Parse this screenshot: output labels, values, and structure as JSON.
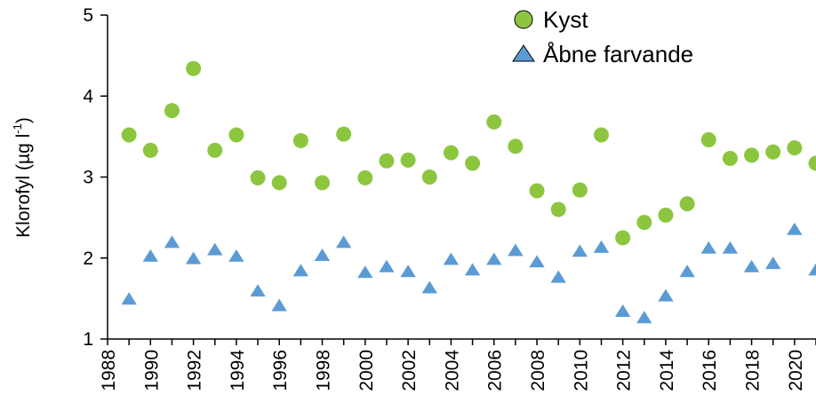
{
  "chart_data": {
    "type": "scatter",
    "title": "",
    "xlabel": "",
    "ylabel": "Klorofyl (µg l",
    "ylabel_superscript": "-1",
    "ylabel_close": ")",
    "xlim": [
      1988,
      2021
    ],
    "ylim": [
      1,
      5
    ],
    "x_ticks": [
      1988,
      1990,
      1992,
      1994,
      1996,
      1998,
      2000,
      2002,
      2004,
      2006,
      2008,
      2010,
      2012,
      2014,
      2016,
      2018,
      2020
    ],
    "x_tick_labels": [
      "1988",
      "1990",
      "1992",
      "1994",
      "1996",
      "1998",
      "2000",
      "2002",
      "2004",
      "2006",
      "2008",
      "2010",
      "2012",
      "2014",
      "2016",
      "2018",
      "2020"
    ],
    "y_ticks": [
      1,
      2,
      3,
      4,
      5
    ],
    "y_tick_labels": [
      "1",
      "2",
      "3",
      "4",
      "5"
    ],
    "grid": false,
    "legend": "top-right",
    "series": [
      {
        "name": "Kyst",
        "marker": "circle",
        "color": "#8cc63f",
        "x": [
          1989,
          1990,
          1991,
          1992,
          1993,
          1994,
          1995,
          1996,
          1997,
          1998,
          1999,
          2000,
          2001,
          2002,
          2003,
          2004,
          2005,
          2006,
          2007,
          2008,
          2009,
          2010,
          2011,
          2012,
          2013,
          2014,
          2015,
          2016,
          2017,
          2018,
          2019,
          2020,
          2021
        ],
        "values": [
          3.52,
          3.33,
          3.82,
          4.34,
          3.33,
          3.52,
          2.99,
          2.93,
          3.45,
          2.93,
          3.53,
          2.99,
          3.2,
          3.21,
          3.0,
          3.3,
          3.17,
          3.68,
          3.38,
          2.83,
          2.6,
          2.84,
          3.52,
          2.25,
          2.44,
          2.53,
          2.67,
          3.46,
          3.23,
          3.27,
          3.31,
          3.36,
          3.17
        ]
      },
      {
        "name": "Åbne farvande",
        "marker": "triangle",
        "color": "#5b9bd5",
        "x": [
          1989,
          1990,
          1991,
          1992,
          1993,
          1994,
          1995,
          1996,
          1997,
          1998,
          1999,
          2000,
          2001,
          2002,
          2003,
          2004,
          2005,
          2006,
          2007,
          2008,
          2009,
          2010,
          2011,
          2012,
          2013,
          2014,
          2015,
          2016,
          2017,
          2018,
          2019,
          2020,
          2021
        ],
        "values": [
          1.49,
          2.02,
          2.19,
          1.99,
          2.1,
          2.02,
          1.59,
          1.41,
          1.84,
          2.03,
          2.19,
          1.82,
          1.89,
          1.83,
          1.63,
          1.98,
          1.85,
          1.98,
          2.09,
          1.95,
          1.76,
          2.08,
          2.13,
          1.34,
          1.26,
          1.53,
          1.83,
          2.12,
          2.12,
          1.89,
          1.93,
          2.35,
          1.85
        ]
      }
    ]
  }
}
